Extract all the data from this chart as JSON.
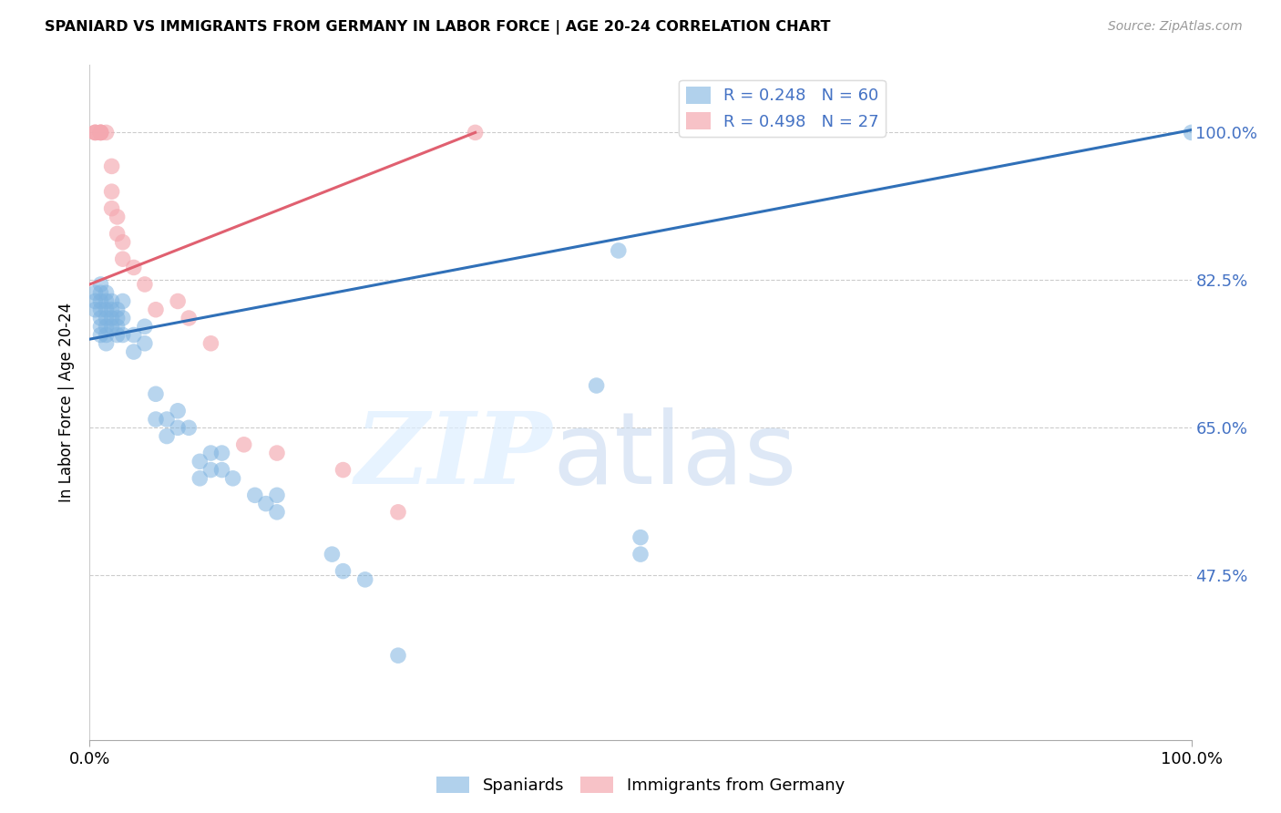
{
  "title": "SPANIARD VS IMMIGRANTS FROM GERMANY IN LABOR FORCE | AGE 20-24 CORRELATION CHART",
  "source": "Source: ZipAtlas.com",
  "ylabel": "In Labor Force | Age 20-24",
  "ytick_labels": [
    "100.0%",
    "82.5%",
    "65.0%",
    "47.5%"
  ],
  "ytick_values": [
    1.0,
    0.825,
    0.65,
    0.475
  ],
  "xlim": [
    0.0,
    1.0
  ],
  "ylim": [
    0.28,
    1.08
  ],
  "legend_label_spaniards": "Spaniards",
  "legend_label_immigrants": "Immigrants from Germany",
  "blue_color": "#7eb3e0",
  "pink_color": "#f4a8b0",
  "blue_line_color": "#3070b8",
  "pink_line_color": "#e06070",
  "blue_scatter": [
    [
      0.005,
      0.79
    ],
    [
      0.005,
      0.8
    ],
    [
      0.005,
      0.81
    ],
    [
      0.01,
      0.76
    ],
    [
      0.01,
      0.77
    ],
    [
      0.01,
      0.78
    ],
    [
      0.01,
      0.79
    ],
    [
      0.01,
      0.8
    ],
    [
      0.01,
      0.81
    ],
    [
      0.01,
      0.82
    ],
    [
      0.015,
      0.75
    ],
    [
      0.015,
      0.76
    ],
    [
      0.015,
      0.77
    ],
    [
      0.015,
      0.78
    ],
    [
      0.015,
      0.79
    ],
    [
      0.015,
      0.8
    ],
    [
      0.015,
      0.81
    ],
    [
      0.02,
      0.77
    ],
    [
      0.02,
      0.78
    ],
    [
      0.02,
      0.79
    ],
    [
      0.02,
      0.8
    ],
    [
      0.025,
      0.76
    ],
    [
      0.025,
      0.77
    ],
    [
      0.025,
      0.78
    ],
    [
      0.025,
      0.79
    ],
    [
      0.03,
      0.76
    ],
    [
      0.03,
      0.78
    ],
    [
      0.03,
      0.8
    ],
    [
      0.04,
      0.74
    ],
    [
      0.04,
      0.76
    ],
    [
      0.05,
      0.75
    ],
    [
      0.05,
      0.77
    ],
    [
      0.06,
      0.66
    ],
    [
      0.06,
      0.69
    ],
    [
      0.07,
      0.64
    ],
    [
      0.07,
      0.66
    ],
    [
      0.08,
      0.65
    ],
    [
      0.08,
      0.67
    ],
    [
      0.09,
      0.65
    ],
    [
      0.1,
      0.59
    ],
    [
      0.1,
      0.61
    ],
    [
      0.11,
      0.6
    ],
    [
      0.11,
      0.62
    ],
    [
      0.12,
      0.6
    ],
    [
      0.12,
      0.62
    ],
    [
      0.13,
      0.59
    ],
    [
      0.15,
      0.57
    ],
    [
      0.16,
      0.56
    ],
    [
      0.17,
      0.55
    ],
    [
      0.17,
      0.57
    ],
    [
      0.22,
      0.5
    ],
    [
      0.23,
      0.48
    ],
    [
      0.25,
      0.47
    ],
    [
      0.28,
      0.38
    ],
    [
      0.46,
      0.7
    ],
    [
      0.48,
      0.86
    ],
    [
      0.5,
      0.52
    ],
    [
      0.5,
      0.5
    ],
    [
      1.0,
      1.0
    ]
  ],
  "pink_scatter": [
    [
      0.005,
      1.0
    ],
    [
      0.005,
      1.0
    ],
    [
      0.005,
      1.0
    ],
    [
      0.01,
      1.0
    ],
    [
      0.01,
      1.0
    ],
    [
      0.01,
      1.0
    ],
    [
      0.01,
      1.0
    ],
    [
      0.015,
      1.0
    ],
    [
      0.02,
      0.96
    ],
    [
      0.02,
      0.93
    ],
    [
      0.02,
      0.91
    ],
    [
      0.025,
      0.9
    ],
    [
      0.025,
      0.88
    ],
    [
      0.03,
      0.87
    ],
    [
      0.03,
      0.85
    ],
    [
      0.04,
      0.84
    ],
    [
      0.05,
      0.82
    ],
    [
      0.06,
      0.79
    ],
    [
      0.08,
      0.8
    ],
    [
      0.09,
      0.78
    ],
    [
      0.11,
      0.75
    ],
    [
      0.14,
      0.63
    ],
    [
      0.17,
      0.62
    ],
    [
      0.23,
      0.6
    ],
    [
      0.28,
      0.55
    ],
    [
      0.35,
      1.0
    ]
  ],
  "blue_line": {
    "x0": 0.0,
    "x1": 1.0,
    "y0": 0.755,
    "y1": 1.003
  },
  "pink_line": {
    "x0": 0.0,
    "x1": 0.35,
    "y0": 0.82,
    "y1": 1.0
  }
}
